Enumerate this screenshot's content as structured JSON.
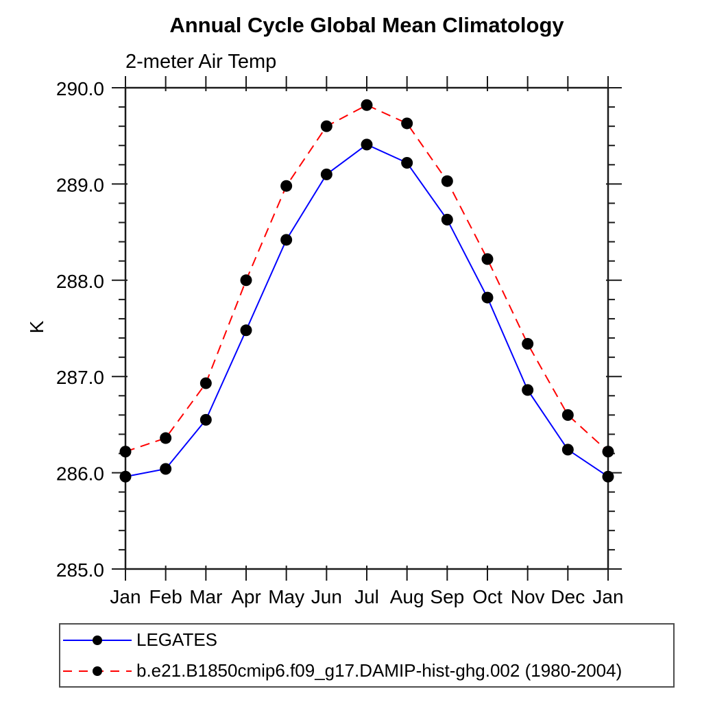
{
  "page": {
    "background_color": "#ffffff",
    "text_color": "#000000",
    "axis_color": "#1a1a1a"
  },
  "header": {
    "title": "Annual Cycle Global Mean Climatology",
    "subtitle": "2-meter Air Temp"
  },
  "chart_data": {
    "type": "line",
    "title": "Annual Cycle Global Mean Climatology",
    "subtitle": "2-meter Air Temp",
    "xlabel": "",
    "ylabel": "K",
    "categories": [
      "Jan",
      "Feb",
      "Mar",
      "Apr",
      "May",
      "Jun",
      "Jul",
      "Aug",
      "Sep",
      "Oct",
      "Nov",
      "Dec",
      "Jan"
    ],
    "ylim": [
      285.0,
      290.0
    ],
    "ytick_major_step": 1.0,
    "ytick_minor_step": 0.2,
    "ytick_labels": [
      "285.0",
      "286.0",
      "287.0",
      "288.0",
      "289.0",
      "290.0"
    ],
    "grid": false,
    "legend_position": "bottom-left-box",
    "series": [
      {
        "name": "LEGATES",
        "color": "#0000ff",
        "line_style": "solid",
        "marker": "filled-circle",
        "marker_color": "#000000",
        "values": [
          285.96,
          286.04,
          286.55,
          287.48,
          288.42,
          289.1,
          289.41,
          289.22,
          288.63,
          287.82,
          286.86,
          286.24,
          285.96
        ]
      },
      {
        "name": "b.e21.B1850cmip6.f09_g17.DAMIP-hist-ghg.002 (1980-2004)",
        "color": "#ff0000",
        "line_style": "dashed",
        "marker": "filled-circle",
        "marker_color": "#000000",
        "values": [
          286.22,
          286.36,
          286.93,
          288.0,
          288.98,
          289.6,
          289.82,
          289.63,
          289.03,
          288.22,
          287.34,
          286.6,
          286.22
        ]
      }
    ]
  }
}
